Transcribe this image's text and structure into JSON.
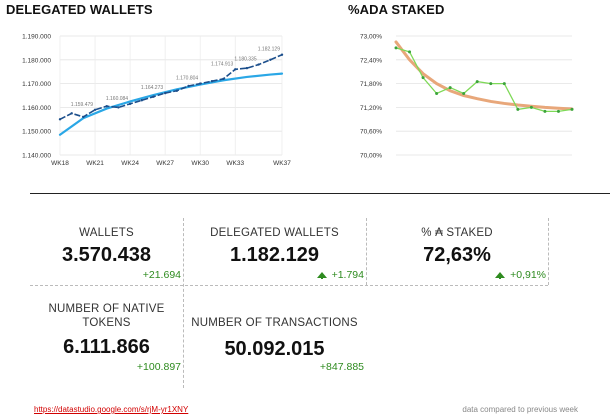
{
  "chart_data": [
    {
      "type": "line",
      "title": "DELEGATED WALLETS",
      "x_ticks": [
        "WK18",
        "WK21",
        "WK24",
        "WK27",
        "WK30",
        "WK33",
        "WK37"
      ],
      "y_ticks": [
        "1.190.000",
        "1.180.000",
        "1.170.000",
        "1.160.000",
        "1.150.000",
        "1.140.000"
      ],
      "ylim": [
        1140000,
        1190000
      ],
      "xlim": [
        18,
        37
      ],
      "series": [
        {
          "name": "delegated wallets",
          "x": [
            18,
            19,
            20,
            21,
            22,
            23,
            24,
            25,
            26,
            27,
            28,
            29,
            30,
            31,
            32,
            33,
            34,
            35,
            36,
            37
          ],
          "values": [
            1155000,
            1157500,
            1156000,
            1159000,
            1160500,
            1160000,
            1161500,
            1163000,
            1164500,
            1166000,
            1167000,
            1169000,
            1170000,
            1171000,
            1172000,
            1176000,
            1176500,
            1178000,
            1180000,
            1182129
          ]
        },
        {
          "name": "trend",
          "x": [
            18,
            20,
            22,
            24,
            26,
            28,
            30,
            32,
            34,
            36,
            37
          ],
          "values": [
            1148500,
            1155500,
            1159500,
            1162500,
            1165200,
            1167600,
            1169600,
            1171400,
            1172800,
            1173800,
            1174200
          ]
        }
      ],
      "data_labels": [
        {
          "x": 21,
          "text": "1.159.479"
        },
        {
          "x": 24,
          "text": "1.160.084"
        },
        {
          "x": 27,
          "text": "1.164.273"
        },
        {
          "x": 30,
          "text": "1.170.804"
        },
        {
          "x": 33,
          "text": "1.174.913"
        },
        {
          "x": 35,
          "text": "1.180.335"
        },
        {
          "x": 37,
          "text": "1.182.129"
        }
      ]
    },
    {
      "type": "line",
      "title": "%ADA STAKED",
      "y_ticks": [
        "73,00%",
        "72,40%",
        "71,80%",
        "71,20%",
        "70,60%",
        "70,00%"
      ],
      "ylim": [
        70.0,
        73.0
      ],
      "series": [
        {
          "name": "% staked",
          "x": [
            0,
            1,
            2,
            3,
            4,
            5,
            6,
            7,
            8,
            9,
            10,
            11,
            12,
            13
          ],
          "values": [
            72.7,
            72.6,
            71.95,
            71.55,
            71.7,
            71.55,
            71.85,
            71.8,
            71.8,
            71.15,
            71.2,
            71.1,
            71.1,
            71.15
          ]
        },
        {
          "name": "trend",
          "x": [
            0,
            1,
            2,
            3,
            4,
            5,
            6,
            7,
            8,
            9,
            10,
            11,
            12,
            13
          ],
          "values": [
            72.85,
            72.4,
            72.05,
            71.8,
            71.62,
            71.5,
            71.42,
            71.35,
            71.3,
            71.26,
            71.23,
            71.2,
            71.18,
            71.16
          ]
        }
      ]
    }
  ],
  "kpis": {
    "wallets": {
      "label": "WALLETS",
      "value": "3.570.438",
      "delta": "+21.694"
    },
    "delegated": {
      "label": "DELEGATED WALLETS",
      "value": "1.182.129",
      "delta": "+1.794"
    },
    "staked": {
      "label": "% ₳ STAKED",
      "value": "72,63%",
      "delta": "+0,91%"
    },
    "tokens": {
      "label": "NUMBER OF NATIVE TOKENS",
      "value": "6.111.866",
      "delta": "+100.897"
    },
    "transactions": {
      "label": "NUMBER OF TRANSACTIONS",
      "value": "50.092.015",
      "delta": "+847.885"
    }
  },
  "footer": {
    "link": "https://datastudio.google.com/s/rjM-yr1XNY",
    "note": "data compared to previous week"
  },
  "colors": {
    "line1": "#1c4f8c",
    "trend1": "#2aa7e6",
    "line2": "#7ed957",
    "trend2": "#e8a77a",
    "positive": "#2e8b1f"
  }
}
